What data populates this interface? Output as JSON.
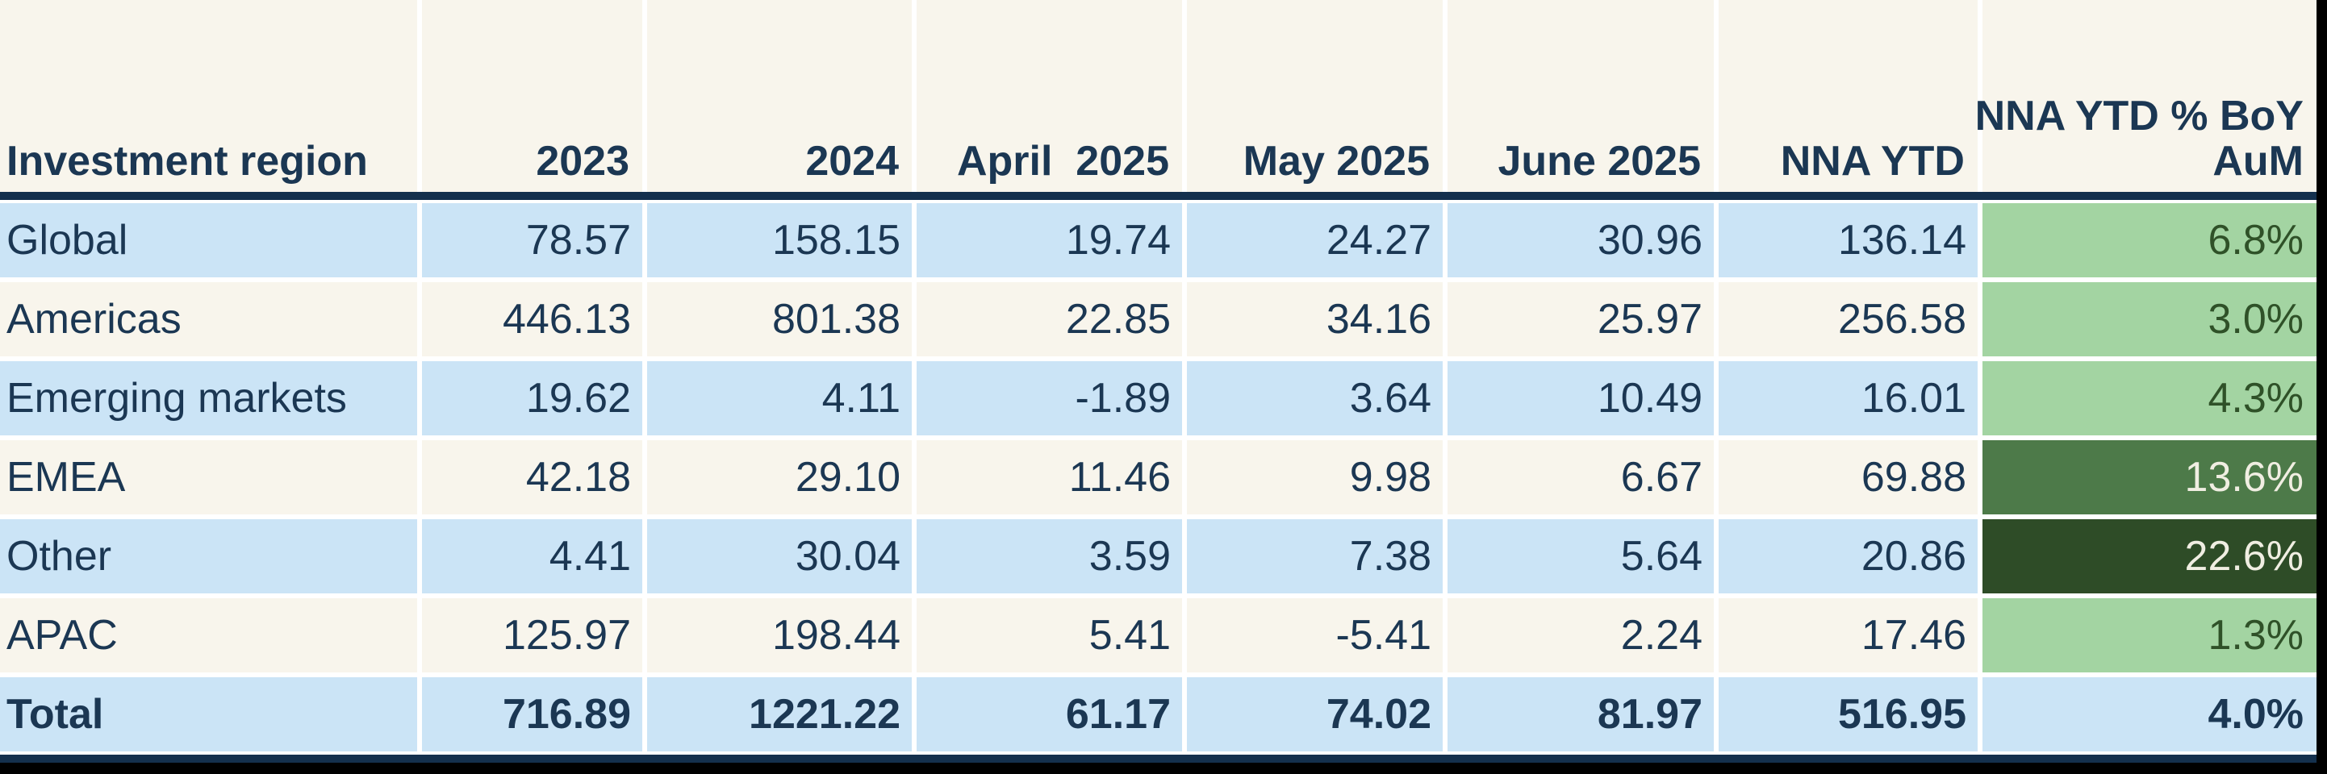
{
  "chart_data": {
    "type": "table",
    "title": "",
    "columns": [
      "Investment region",
      "2023",
      "2024",
      "April 2025",
      "May 2025",
      "June 2025",
      "NNA YTD",
      "NNA YTD % BoY AuM"
    ],
    "rows": [
      [
        "Global",
        78.57,
        158.15,
        19.74,
        24.27,
        30.96,
        136.14,
        "6.8%"
      ],
      [
        "Americas",
        446.13,
        801.38,
        22.85,
        34.16,
        25.97,
        256.58,
        "3.0%"
      ],
      [
        "Emerging markets",
        19.62,
        4.11,
        -1.89,
        3.64,
        10.49,
        16.01,
        "4.3%"
      ],
      [
        "EMEA",
        42.18,
        29.1,
        11.46,
        9.98,
        6.67,
        69.88,
        "13.6%"
      ],
      [
        "Other",
        4.41,
        30.04,
        3.59,
        7.38,
        5.64,
        20.86,
        "22.6%"
      ],
      [
        "APAC",
        125.97,
        198.44,
        5.41,
        -5.41,
        2.24,
        17.46,
        "1.3%"
      ],
      [
        "Total",
        716.89,
        1221.22,
        61.17,
        74.02,
        81.97,
        516.95,
        "4.0%"
      ]
    ],
    "legend_position": "none",
    "notes": "Last column is heat-shaded green by percentage magnitude; Total row percent cell stays blue"
  },
  "table": {
    "header": {
      "cols": [
        "Investment region",
        "2023",
        "2024",
        "April  2025",
        "May 2025",
        "June 2025",
        "NNA YTD"
      ],
      "last_col_line1": "NNA YTD % BoY",
      "last_col_line2": "AuM"
    },
    "rows": [
      {
        "cells": [
          "Global",
          "78.57",
          "158.15",
          "19.74",
          "24.27",
          "30.96",
          "136.14",
          "6.8%"
        ]
      },
      {
        "cells": [
          "Americas",
          "446.13",
          "801.38",
          "22.85",
          "34.16",
          "25.97",
          "256.58",
          "3.0%"
        ]
      },
      {
        "cells": [
          "Emerging markets",
          "19.62",
          "4.11",
          "-1.89",
          "3.64",
          "10.49",
          "16.01",
          "4.3%"
        ]
      },
      {
        "cells": [
          "EMEA",
          "42.18",
          "29.10",
          "11.46",
          "9.98",
          "6.67",
          "69.88",
          "13.6%"
        ]
      },
      {
        "cells": [
          "Other",
          "4.41",
          "30.04",
          "3.59",
          "7.38",
          "5.64",
          "20.86",
          "22.6%"
        ]
      },
      {
        "cells": [
          "APAC",
          "125.97",
          "198.44",
          "5.41",
          "-5.41",
          "2.24",
          "17.46",
          "1.3%"
        ]
      },
      {
        "cells": [
          "Total",
          "716.89",
          "1221.22",
          "61.17",
          "74.02",
          "81.97",
          "516.95",
          "4.0%"
        ]
      }
    ]
  },
  "colors": {
    "background_black": "#000000",
    "gap_white": "#ffffff",
    "cream": "#f8f5ec",
    "row_blue": "#cbe4f6",
    "navy_text": "#1b3753",
    "navy_rule": "#14304d",
    "green_light_bg": "#a3d4a2",
    "green_light_text": "#2f5128",
    "green_medium_bg": "#4d7a49",
    "green_dark_bg": "#2e4c27",
    "green_on_dark_text": "#f0eee2"
  }
}
